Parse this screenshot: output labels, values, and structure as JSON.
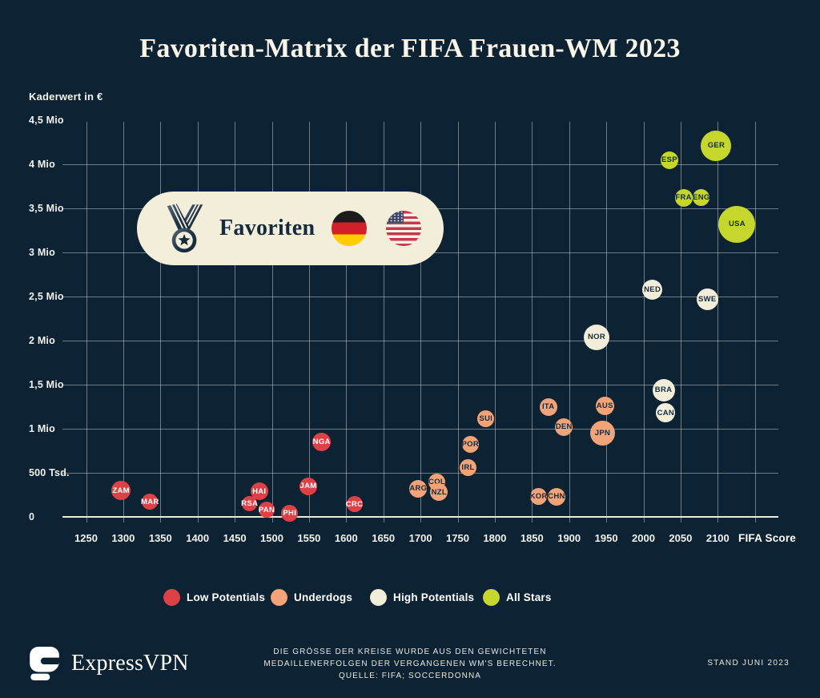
{
  "page": {
    "background": "#0d2334"
  },
  "title": "Favoriten-Matrix der FIFA Frauen-WM 2023",
  "y_axis": {
    "title": "Kaderwert in €",
    "ticks": [
      {
        "label": "4,5 Mio",
        "value": 4500000
      },
      {
        "label": "4 Mio",
        "value": 4000000
      },
      {
        "label": "3,5 Mio",
        "value": 3500000
      },
      {
        "label": "3 Mio",
        "value": 3000000
      },
      {
        "label": "2,5 Mio",
        "value": 2500000
      },
      {
        "label": "2 Mio",
        "value": 2000000
      },
      {
        "label": "1,5 Mio",
        "value": 1500000
      },
      {
        "label": "1 Mio",
        "value": 1000000
      },
      {
        "label": "500 Tsd.",
        "value": 500000
      },
      {
        "label": "0",
        "value": 0
      }
    ]
  },
  "x_axis": {
    "title": "FIFA Score",
    "ticks": [
      {
        "label": "1250",
        "value": 1250
      },
      {
        "label": "1300",
        "value": 1300
      },
      {
        "label": "1350",
        "value": 1350
      },
      {
        "label": "1400",
        "value": 1400
      },
      {
        "label": "1450",
        "value": 1450
      },
      {
        "label": "1500",
        "value": 1500
      },
      {
        "label": "1550",
        "value": 1550
      },
      {
        "label": "1600",
        "value": 1600
      },
      {
        "label": "1650",
        "value": 1650
      },
      {
        "label": "1700",
        "value": 1700
      },
      {
        "label": "1750",
        "value": 1750
      },
      {
        "label": "1800",
        "value": 1800
      },
      {
        "label": "1850",
        "value": 1850
      },
      {
        "label": "1900",
        "value": 1900
      },
      {
        "label": "1950",
        "value": 1950
      },
      {
        "label": "2000",
        "value": 2000
      },
      {
        "label": "2050",
        "value": 2050
      },
      {
        "label": "2100",
        "value": 2100
      }
    ]
  },
  "callout": {
    "label": "Favoriten",
    "icons": [
      "medal-icon",
      "germany-flag",
      "usa-flag"
    ]
  },
  "legend": [
    {
      "label": "Low Potentials",
      "color": "#dd4146"
    },
    {
      "label": "Underdogs",
      "color": "#f2a377"
    },
    {
      "label": "High Potentials",
      "color": "#f2edd8"
    },
    {
      "label": "All Stars",
      "color": "#c5d62c"
    }
  ],
  "footer": {
    "brand": "ExpressVPN",
    "note_lines": [
      "DIE GRÖSSE DER KREISE WURDE AUS DEN GEWICHTETEN",
      "MEDAILLENERFOLGEN DER VERGANGENEN WM'S BERECHNET.",
      "QUELLE: FIFA; SOCCERDONNA"
    ],
    "stand": "STAND JUNI 2023"
  },
  "chart_data": {
    "type": "scatter",
    "title": "Favoriten-Matrix der FIFA Frauen-WM 2023",
    "xlabel": "FIFA Score",
    "ylabel": "Kaderwert in €",
    "xlim": [
      1250,
      2150
    ],
    "x_grid_step": 50,
    "ylim": [
      0,
      4500000
    ],
    "y_grid_step": 500000,
    "grid": true,
    "legend_position": "bottom",
    "size_note": "Bubble size = weighted medal success at past World Cups",
    "series": [
      {
        "name": "Low Potentials",
        "color": "#dd4146",
        "text_color": "#ffffff",
        "points": [
          {
            "label": "ZAM",
            "x": 1297,
            "y": 300000,
            "r": 12
          },
          {
            "label": "MAR",
            "x": 1336,
            "y": 170000,
            "r": 10
          },
          {
            "label": "RSA",
            "x": 1470,
            "y": 150000,
            "r": 9.5
          },
          {
            "label": "HAI",
            "x": 1483,
            "y": 290000,
            "r": 11
          },
          {
            "label": "PAN",
            "x": 1493,
            "y": 80000,
            "r": 10
          },
          {
            "label": "PHI",
            "x": 1524,
            "y": 40000,
            "r": 10.5
          },
          {
            "label": "JAM",
            "x": 1549,
            "y": 350000,
            "r": 11
          },
          {
            "label": "NGA",
            "x": 1567,
            "y": 850000,
            "r": 11.5
          },
          {
            "label": "CRC",
            "x": 1611,
            "y": 145000,
            "r": 10
          }
        ]
      },
      {
        "name": "Underdogs",
        "color": "#f2a377",
        "text_color": "#142a3e",
        "points": [
          {
            "label": "ARG",
            "x": 1697,
            "y": 320000,
            "r": 11
          },
          {
            "label": "COL",
            "x": 1722,
            "y": 400000,
            "r": 10.5
          },
          {
            "label": "NZL",
            "x": 1725,
            "y": 280000,
            "r": 11
          },
          {
            "label": "IRL",
            "x": 1764,
            "y": 560000,
            "r": 10.5
          },
          {
            "label": "POR",
            "x": 1767,
            "y": 820000,
            "r": 10.5
          },
          {
            "label": "SUI",
            "x": 1788,
            "y": 1110000,
            "r": 10.5
          },
          {
            "label": "KOR",
            "x": 1859,
            "y": 230000,
            "r": 10.5
          },
          {
            "label": "ITA",
            "x": 1872,
            "y": 1250000,
            "r": 11
          },
          {
            "label": "CHN",
            "x": 1883,
            "y": 230000,
            "r": 11
          },
          {
            "label": "DEN",
            "x": 1893,
            "y": 1020000,
            "r": 11
          },
          {
            "label": "JPN",
            "x": 1945,
            "y": 950000,
            "r": 15.5
          },
          {
            "label": "AUS",
            "x": 1948,
            "y": 1260000,
            "r": 11.5
          }
        ]
      },
      {
        "name": "High Potentials",
        "color": "#f2edd8",
        "text_color": "#142a3e",
        "points": [
          {
            "label": "NOR",
            "x": 1937,
            "y": 2040000,
            "r": 16
          },
          {
            "label": "NED",
            "x": 2012,
            "y": 2580000,
            "r": 12.5
          },
          {
            "label": "BRA",
            "x": 2027,
            "y": 1440000,
            "r": 14
          },
          {
            "label": "CAN",
            "x": 2030,
            "y": 1180000,
            "r": 12
          },
          {
            "label": "SWE",
            "x": 2086,
            "y": 2470000,
            "r": 13.5
          }
        ]
      },
      {
        "name": "All Stars",
        "color": "#c5d62c",
        "text_color": "#142a3e",
        "points": [
          {
            "label": "ESP",
            "x": 2035,
            "y": 4050000,
            "r": 11
          },
          {
            "label": "FRA",
            "x": 2054,
            "y": 3620000,
            "r": 11
          },
          {
            "label": "ENG",
            "x": 2078,
            "y": 3620000,
            "r": 10.5
          },
          {
            "label": "GER",
            "x": 2098,
            "y": 4210000,
            "r": 19
          },
          {
            "label": "USA",
            "x": 2126,
            "y": 3320000,
            "r": 23
          }
        ]
      }
    ]
  }
}
